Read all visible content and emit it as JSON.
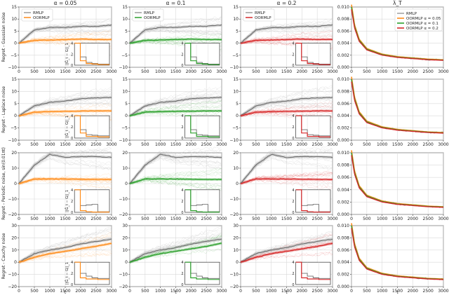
{
  "chart_data": {
    "type": "line",
    "layout": "4x4 grid",
    "x": [
      0,
      500,
      1000,
      1500,
      2000,
      2500,
      3000
    ],
    "xlim": [
      0,
      3000
    ],
    "xticks": [
      "0",
      "500",
      "1000",
      "1500",
      "2000",
      "2500",
      "3000"
    ],
    "xlabel": "t",
    "column_titles": [
      "α = 0.05",
      "α = 0.1",
      "α = 0.2",
      "λ̂_T"
    ],
    "colors": {
      "RMLP": "#6e6e6e",
      "OORMLP_0.05": "#ff8c1a",
      "OORMLP_0.1": "#2ca02c",
      "OORMLP_0.2": "#d62728",
      "grid": "#d9d9d9",
      "axis": "#333333"
    },
    "legend_regret": {
      "placement": "top-left",
      "entries": [
        "RMLP",
        "OORMLP"
      ]
    },
    "legend_lambda": {
      "placement": "top-right",
      "entries": [
        "RMLP",
        "OORMLP α = 0.05",
        "OORMLP α = 0.1",
        "OORMLP α = 0.2"
      ]
    },
    "inset": {
      "ylabel": "||Ĝ_t − G||_1",
      "yticks": [
        "0",
        "2",
        "4"
      ],
      "ylim": [
        0,
        4
      ],
      "placement": "bottom-right"
    },
    "rows": [
      {
        "ylabel": "Regret - Gaussian noise",
        "ylim": [
          -10,
          15
        ],
        "yticks": [
          "−10",
          "−5",
          "0",
          "5",
          "10",
          "15"
        ],
        "rmlp": [
          0,
          5.5,
          6.5,
          6.5,
          7,
          7,
          7.5
        ],
        "oormlp": [
          0,
          1.2,
          1.3,
          1.5,
          1.7,
          1.5,
          1.5
        ],
        "inset_rmlp": [
          4,
          1.5,
          0.5,
          0.3,
          0.2,
          0.2,
          0.2
        ],
        "inset_oormlp": [
          4,
          0.8,
          0.3,
          0.2,
          0.1,
          0.1,
          0.1
        ]
      },
      {
        "ylabel": "Regret - Laplace noise",
        "ylim": [
          -10,
          15
        ],
        "yticks": [
          "−10",
          "−5",
          "0",
          "5",
          "10",
          "15"
        ],
        "rmlp": [
          0,
          4,
          5.5,
          6,
          7,
          7.3,
          7.5
        ],
        "oormlp": [
          0,
          1.5,
          1.7,
          1.8,
          1.9,
          2,
          2
        ],
        "inset_rmlp": [
          4,
          1.5,
          0.6,
          0.5,
          0.4,
          0.4,
          0.4
        ],
        "inset_oormlp": [
          4,
          0.9,
          0.3,
          0.3,
          0.2,
          0.2,
          0.2
        ]
      },
      {
        "ylabel": "Regret - Periodic noise, sin(0.01πt)",
        "ylim": [
          -20,
          20
        ],
        "yticks": [
          "−20",
          "−10",
          "0",
          "10",
          "20"
        ],
        "rmlp": [
          0,
          12,
          19,
          17,
          17.5,
          17.5,
          17
        ],
        "oormlp": [
          0,
          3,
          3,
          3,
          2.8,
          2.7,
          2.7
        ],
        "inset_rmlp": [
          4,
          1.2,
          1.3,
          1.4,
          0.1,
          0.1,
          0.1
        ],
        "inset_oormlp": [
          4,
          0.3,
          0.1,
          0.05,
          0.05,
          0.05,
          0.05
        ]
      },
      {
        "ylabel": "Regret - Cauchy noise",
        "ylim": [
          -20,
          30
        ],
        "yticks": [
          "−20",
          "−10",
          "0",
          "10",
          "20",
          "30"
        ],
        "rmlp": [
          0,
          7,
          10,
          12,
          15,
          17,
          19
        ],
        "oormlp": [
          0,
          4,
          7,
          9,
          11,
          13,
          15.5
        ],
        "inset_rmlp": [
          4,
          2,
          1.5,
          1.2,
          1.1,
          1.1,
          1.1
        ],
        "inset_oormlp": [
          4,
          1.2,
          1,
          1,
          0.9,
          0.9,
          0.9
        ]
      }
    ],
    "lambda": {
      "ylim": [
        0,
        0.01
      ],
      "yticks": [
        "0.000",
        "0.002",
        "0.004",
        "0.006",
        "0.008",
        "0.010"
      ],
      "x": [
        0,
        100,
        250,
        500,
        1000,
        1500,
        2000,
        2500,
        3000
      ],
      "values": [
        0.01,
        0.0068,
        0.0045,
        0.003,
        0.0021,
        0.0017,
        0.0015,
        0.0013,
        0.0012
      ]
    }
  }
}
